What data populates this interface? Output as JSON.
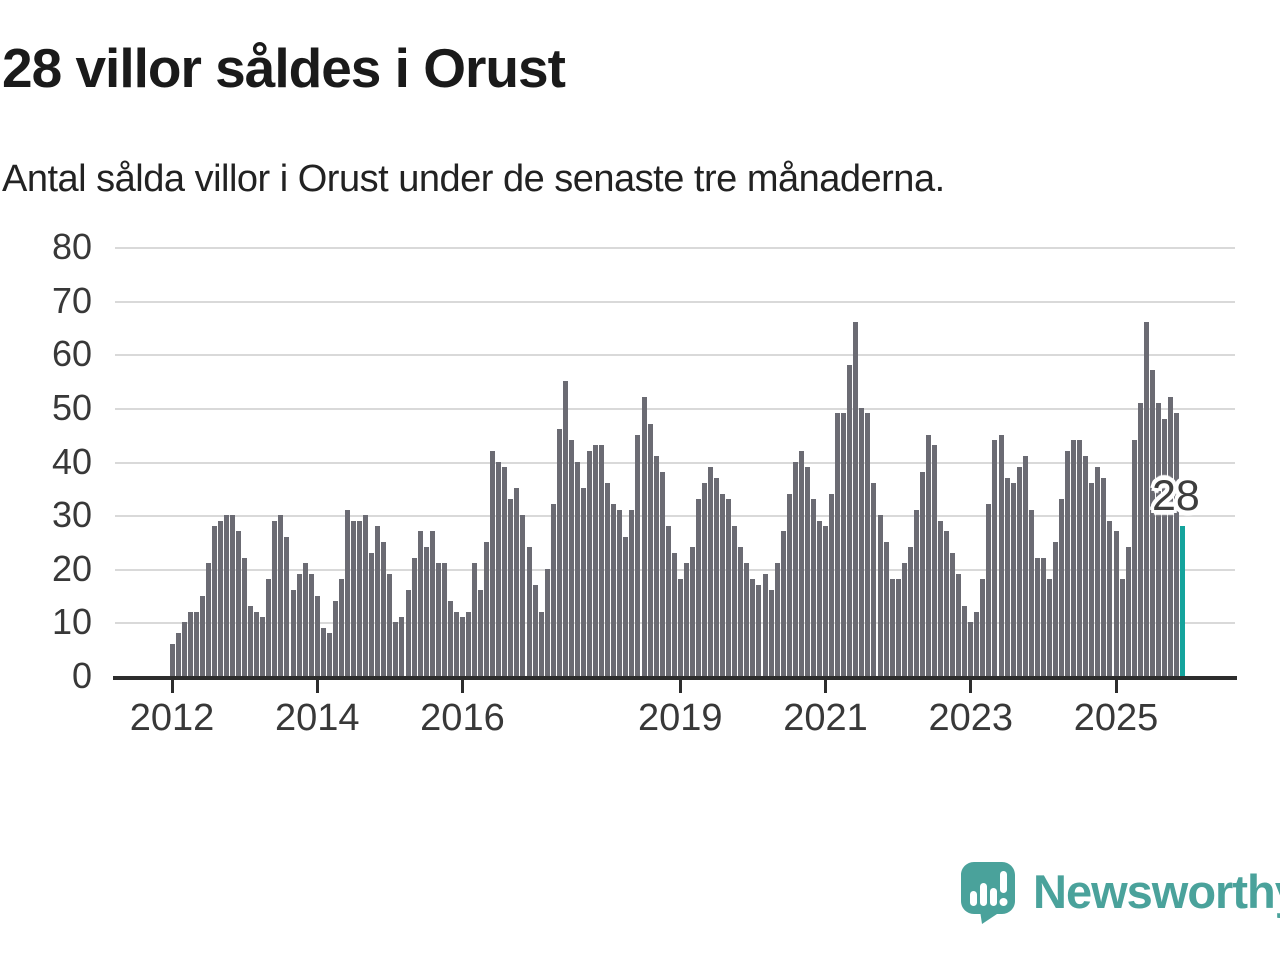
{
  "title": "28 villor såldes i Orust",
  "subtitle": "Antal sålda villor i Orust under de senaste tre månaderna.",
  "annotation": {
    "label": "28"
  },
  "footer": {
    "brand": "Newsworthy"
  },
  "colors": {
    "bar": "#6b6b73",
    "highlight": "#14a39c",
    "brand_teal": "#4aa29b",
    "grid": "#d9d9d9",
    "axis": "#2d2d2d",
    "tick_text": "#383838"
  },
  "chart_data": {
    "type": "bar",
    "title": "28 villor såldes i Orust",
    "subtitle": "Antal sålda villor i Orust under de senaste tre månaderna.",
    "xlabel": "",
    "ylabel": "",
    "frequency": "monthly",
    "x_start": "2012-01",
    "ylim": [
      0,
      80
    ],
    "yticks": [
      0,
      10,
      20,
      30,
      40,
      50,
      60,
      70,
      80
    ],
    "grid": "horizontal",
    "legend": "none",
    "values": [
      6,
      8,
      10,
      12,
      12,
      15,
      21,
      28,
      29,
      30,
      30,
      27,
      22,
      13,
      12,
      11,
      18,
      29,
      30,
      26,
      16,
      19,
      21,
      19,
      15,
      9,
      8,
      14,
      18,
      31,
      29,
      29,
      30,
      23,
      28,
      25,
      19,
      10,
      11,
      16,
      22,
      27,
      24,
      27,
      21,
      21,
      14,
      12,
      11,
      12,
      21,
      16,
      25,
      42,
      40,
      39,
      33,
      35,
      30,
      24,
      17,
      12,
      20,
      32,
      46,
      55,
      44,
      40,
      35,
      42,
      43,
      43,
      36,
      32,
      31,
      26,
      31,
      45,
      52,
      47,
      41,
      38,
      28,
      23,
      18,
      21,
      24,
      33,
      36,
      39,
      37,
      34,
      33,
      28,
      24,
      21,
      18,
      17,
      19,
      16,
      21,
      27,
      34,
      40,
      42,
      39,
      33,
      29,
      28,
      34,
      49,
      49,
      58,
      66,
      50,
      49,
      36,
      30,
      25,
      18,
      18,
      21,
      24,
      31,
      38,
      45,
      43,
      29,
      27,
      23,
      19,
      13,
      10,
      12,
      18,
      32,
      44,
      45,
      37,
      36,
      39,
      41,
      31,
      22,
      22,
      18,
      25,
      33,
      42,
      44,
      44,
      41,
      36,
      39,
      37,
      29,
      27,
      18,
      24,
      44,
      51,
      66,
      57,
      51,
      48,
      52,
      49,
      28
    ],
    "highlight": {
      "index": 167,
      "value": 28,
      "label": "28"
    },
    "xticks": [
      {
        "label": "2012",
        "index": 0
      },
      {
        "label": "2014",
        "index": 24
      },
      {
        "label": "2016",
        "index": 48
      },
      {
        "label": "2019",
        "index": 84
      },
      {
        "label": "2021",
        "index": 108
      },
      {
        "label": "2023",
        "index": 132
      },
      {
        "label": "2025",
        "index": 156
      }
    ]
  }
}
